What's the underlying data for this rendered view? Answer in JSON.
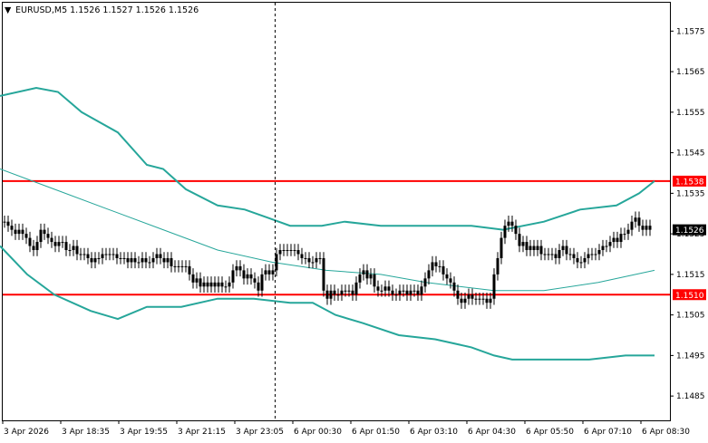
{
  "header": {
    "arrow": "▼",
    "text": "EURUSD,M5  1.1526 1.1527 1.1526 1.1526"
  },
  "colors": {
    "background": "#ffffff",
    "candle": "#000000",
    "band": "#26a69a",
    "ma": "#26a69a",
    "level": "#ff0000",
    "current_tag_bg": "#000000",
    "current_tag_text": "#ffffff",
    "level_tag_bg": "#ff0000",
    "level_tag_text": "#ffffff",
    "axis": "#000000"
  },
  "chart_data": {
    "type": "candlestick",
    "symbol": "EURUSD",
    "timeframe": "M5",
    "ylim": [
      1.1479,
      1.1582
    ],
    "y_ticks": [
      "1.1575",
      "1.1565",
      "1.1555",
      "1.1545",
      "1.1535",
      "1.1525",
      "1.1515",
      "1.1505",
      "1.1495",
      "1.1485"
    ],
    "x_ticks": [
      "3 Apr 2026",
      "3 Apr 18:35",
      "3 Apr 19:55",
      "3 Apr 21:15",
      "3 Apr 23:05",
      "6 Apr 00:30",
      "6 Apr 01:50",
      "6 Apr 03:10",
      "6 Apr 04:30",
      "6 Apr 05:50",
      "6 Apr 07:10",
      "6 Apr 08:30"
    ],
    "levels": [
      {
        "value": 1.1538,
        "label": "1.1538"
      },
      {
        "value": 1.151,
        "label": "1.1510"
      }
    ],
    "current_price": {
      "value": 1.1526,
      "label": "1.1526"
    },
    "session_break_index": 75,
    "candles_close": [
      1.1528,
      1.1527,
      1.1526,
      1.1525,
      1.1526,
      1.1525,
      1.1524,
      1.1522,
      1.1521,
      1.1523,
      1.1526,
      1.1525,
      1.1524,
      1.1523,
      1.1522,
      1.1523,
      1.1523,
      1.1521,
      1.1521,
      1.1522,
      1.152,
      1.152,
      1.152,
      1.1519,
      1.1518,
      1.1519,
      1.1519,
      1.152,
      1.152,
      1.152,
      1.152,
      1.1519,
      1.1519,
      1.1519,
      1.1518,
      1.1519,
      1.1518,
      1.1518,
      1.1519,
      1.1518,
      1.1518,
      1.1519,
      1.152,
      1.1519,
      1.1518,
      1.1519,
      1.1517,
      1.1517,
      1.1517,
      1.1517,
      1.1517,
      1.1515,
      1.1513,
      1.1514,
      1.1512,
      1.1513,
      1.1512,
      1.1513,
      1.1512,
      1.1513,
      1.1512,
      1.1512,
      1.1513,
      1.1516,
      1.1517,
      1.1516,
      1.1514,
      1.1515,
      1.1514,
      1.1513,
      1.1511,
      1.1515,
      1.1516,
      1.1515,
      1.1516,
      1.152,
      1.1521,
      1.1521,
      1.1521,
      1.1521,
      1.1521,
      1.152,
      1.1519,
      1.1519,
      1.1518,
      1.1518,
      1.1519,
      1.1519,
      1.1511,
      1.1509,
      1.1511,
      1.151,
      1.151,
      1.1511,
      1.1511,
      1.1511,
      1.151,
      1.1513,
      1.1515,
      1.1516,
      1.1514,
      1.1515,
      1.1512,
      1.1511,
      1.1511,
      1.1512,
      1.1511,
      1.151,
      1.151,
      1.1511,
      1.1511,
      1.151,
      1.1511,
      1.1511,
      1.151,
      1.1512,
      1.1514,
      1.1516,
      1.1518,
      1.1517,
      1.1517,
      1.1515,
      1.1514,
      1.1513,
      1.1511,
      1.1509,
      1.1508,
      1.1509,
      1.151,
      1.1509,
      1.1509,
      1.1509,
      1.1509,
      1.1508,
      1.1509,
      1.1515,
      1.1519,
      1.1524,
      1.1527,
      1.1528,
      1.1527,
      1.1525,
      1.1522,
      1.1523,
      1.1521,
      1.1522,
      1.1521,
      1.1522,
      1.152,
      1.152,
      1.152,
      1.152,
      1.1519,
      1.1521,
      1.1522,
      1.152,
      1.152,
      1.1519,
      1.1518,
      1.1518,
      1.1519,
      1.152,
      1.152,
      1.152,
      1.1521,
      1.1522,
      1.1522,
      1.1523,
      1.1524,
      1.1523,
      1.1525,
      1.1525,
      1.1526,
      1.1528,
      1.1529,
      1.1527,
      1.1526,
      1.1527,
      1.1526
    ],
    "bollinger_upper": [
      [
        0,
        1.1559
      ],
      [
        40,
        1.1561
      ],
      [
        64,
        1.156
      ],
      [
        90,
        1.1555
      ],
      [
        130,
        1.155
      ],
      [
        162,
        1.1542
      ],
      [
        180,
        1.1541
      ],
      [
        205,
        1.1536
      ],
      [
        240,
        1.1532
      ],
      [
        270,
        1.1531
      ],
      [
        295,
        1.1529
      ],
      [
        320,
        1.1527
      ],
      [
        355,
        1.1527
      ],
      [
        380,
        1.1528
      ],
      [
        420,
        1.1527
      ],
      [
        470,
        1.1527
      ],
      [
        520,
        1.1527
      ],
      [
        555,
        1.1526
      ],
      [
        600,
        1.1528
      ],
      [
        640,
        1.1531
      ],
      [
        680,
        1.1532
      ],
      [
        705,
        1.1535
      ],
      [
        722,
        1.1538
      ]
    ],
    "bollinger_middle": [
      [
        0,
        1.1541
      ],
      [
        60,
        1.1536
      ],
      [
        120,
        1.1531
      ],
      [
        180,
        1.1526
      ],
      [
        240,
        1.1521
      ],
      [
        300,
        1.1518
      ],
      [
        360,
        1.1516
      ],
      [
        420,
        1.1515
      ],
      [
        470,
        1.1513
      ],
      [
        545,
        1.1511
      ],
      [
        600,
        1.1511
      ],
      [
        660,
        1.1513
      ],
      [
        722,
        1.1516
      ]
    ],
    "bollinger_lower": [
      [
        0,
        1.1522
      ],
      [
        30,
        1.1515
      ],
      [
        60,
        1.151
      ],
      [
        100,
        1.1506
      ],
      [
        130,
        1.1504
      ],
      [
        162,
        1.1507
      ],
      [
        200,
        1.1507
      ],
      [
        240,
        1.1509
      ],
      [
        280,
        1.1509
      ],
      [
        320,
        1.1508
      ],
      [
        345,
        1.1508
      ],
      [
        370,
        1.1505
      ],
      [
        400,
        1.1503
      ],
      [
        440,
        1.15
      ],
      [
        480,
        1.1499
      ],
      [
        520,
        1.1497
      ],
      [
        545,
        1.1495
      ],
      [
        565,
        1.1494
      ],
      [
        610,
        1.1494
      ],
      [
        650,
        1.1494
      ],
      [
        690,
        1.1495
      ],
      [
        722,
        1.1495
      ]
    ]
  }
}
